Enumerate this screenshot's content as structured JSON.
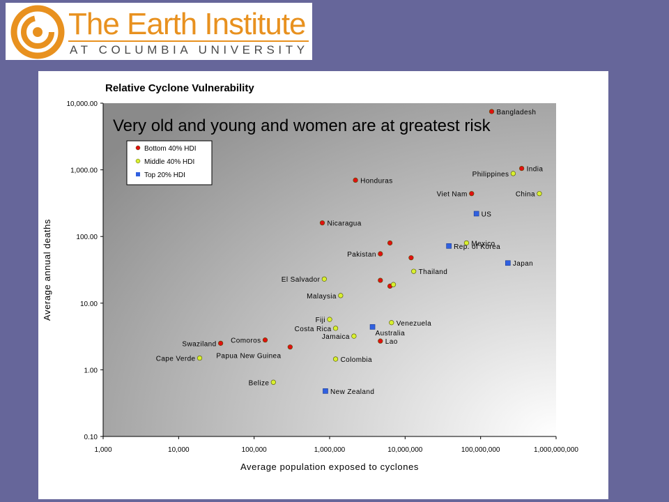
{
  "header": {
    "logo_line1": "The Earth Institute",
    "logo_line2": "AT COLUMBIA UNIVERSITY"
  },
  "annotation": "Very old and young and women are at greatest risk",
  "colors": {
    "background": "#66669a",
    "bottom": "#e01010",
    "middle": "#d8f030",
    "top": "#3060e0",
    "logo_orange": "#e8911f"
  },
  "chart_data": {
    "type": "scatter",
    "title": "Relative Cyclone Vulnerability",
    "xlabel": "Average population exposed to cyclones",
    "ylabel": "Average annual deaths",
    "xscale": "log",
    "yscale": "log",
    "xlim": [
      1000,
      1000000000
    ],
    "ylim": [
      0.1,
      10000
    ],
    "xticks": [
      "1,000",
      "10,000",
      "100,000",
      "1,000,000",
      "10,000,000",
      "100,000,000",
      "1,000,000,000"
    ],
    "yticks": [
      "10,000.00",
      "1,000.00",
      "100.00",
      "10.00",
      "1.00",
      "0.10"
    ],
    "legend": {
      "position": "top-left",
      "entries": [
        {
          "key": "bottom",
          "label": "Bottom 40% HDI"
        },
        {
          "key": "middle",
          "label": "Middle 40% HDI"
        },
        {
          "key": "top",
          "label": "Top 20% HDI"
        }
      ]
    },
    "series": [
      {
        "name": "Bottom 40% HDI",
        "key": "bottom",
        "points": [
          {
            "x": 140000000,
            "y": 7500,
            "label": "Bangladesh"
          },
          {
            "x": 350000000,
            "y": 1050,
            "label": "India"
          },
          {
            "x": 2200000,
            "y": 700,
            "label": "Honduras"
          },
          {
            "x": 76000000,
            "y": 440,
            "label": "Viet Nam"
          },
          {
            "x": 800000,
            "y": 160,
            "label": "Nicaragua"
          },
          {
            "x": 4700000,
            "y": 55,
            "label": "Pakistan"
          },
          {
            "x": 6300000,
            "y": 80,
            "label": ""
          },
          {
            "x": 12000000,
            "y": 48,
            "label": ""
          },
          {
            "x": 4700000,
            "y": 22,
            "label": ""
          },
          {
            "x": 6300000,
            "y": 18,
            "label": ""
          },
          {
            "x": 36000,
            "y": 2.5,
            "label": "Swaziland"
          },
          {
            "x": 140000,
            "y": 2.8,
            "label": "Comoros"
          },
          {
            "x": 300000,
            "y": 2.2,
            "label": "Papua New Guinea"
          },
          {
            "x": 4700000,
            "y": 2.7,
            "label": "Lao"
          }
        ]
      },
      {
        "name": "Middle 40% HDI",
        "key": "middle",
        "points": [
          {
            "x": 270000000,
            "y": 880,
            "label": "Philippines"
          },
          {
            "x": 600000000,
            "y": 440,
            "label": "China"
          },
          {
            "x": 65000000,
            "y": 80,
            "label": "Mexico"
          },
          {
            "x": 13000000,
            "y": 30,
            "label": "Thailand"
          },
          {
            "x": 850000,
            "y": 23,
            "label": "El Salvador"
          },
          {
            "x": 7000000,
            "y": 19,
            "label": ""
          },
          {
            "x": 1400000,
            "y": 13,
            "label": "Malaysia"
          },
          {
            "x": 1000000,
            "y": 5.7,
            "label": "Fiji"
          },
          {
            "x": 6600000,
            "y": 5.1,
            "label": "Venezuela"
          },
          {
            "x": 1200000,
            "y": 4.2,
            "label": "Costa Rica"
          },
          {
            "x": 2100000,
            "y": 3.2,
            "label": "Jamaica"
          },
          {
            "x": 19000,
            "y": 1.5,
            "label": "Cape Verde"
          },
          {
            "x": 1200000,
            "y": 1.45,
            "label": "Colombia"
          },
          {
            "x": 180000,
            "y": 0.65,
            "label": "Belize"
          }
        ]
      },
      {
        "name": "Top 20% HDI",
        "key": "top",
        "points": [
          {
            "x": 88000000,
            "y": 220,
            "label": "US"
          },
          {
            "x": 38000000,
            "y": 72,
            "label": "Rep. of Korea"
          },
          {
            "x": 230000000,
            "y": 40,
            "label": "Japan"
          },
          {
            "x": 3700000,
            "y": 4.4,
            "label": "Australia"
          },
          {
            "x": 880000,
            "y": 0.48,
            "label": "New Zealand"
          }
        ]
      }
    ]
  }
}
